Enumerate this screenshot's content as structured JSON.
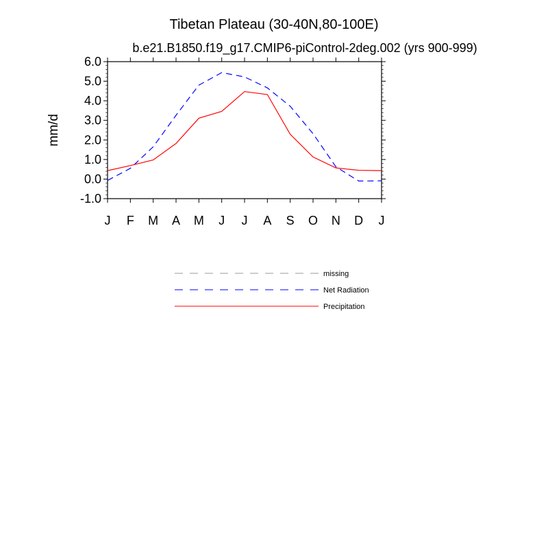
{
  "chart_data": {
    "type": "line",
    "title": "Tibetan Plateau (30-40N,80-100E)",
    "subtitle": "b.e21.B1850.f19_g17.CMIP6-piControl-2deg.002 (yrs 900-999)",
    "xlabel": "",
    "ylabel": "mm/d",
    "categories": [
      "J",
      "F",
      "M",
      "A",
      "M",
      "J",
      "J",
      "A",
      "S",
      "O",
      "N",
      "D",
      "J"
    ],
    "ylim": [
      -1.0,
      6.0
    ],
    "yticks": [
      "-1.0",
      "0.0",
      "1.0",
      "2.0",
      "3.0",
      "4.0",
      "5.0",
      "6.0"
    ],
    "grid": false,
    "legend_position": "bottom",
    "legend": [
      {
        "name": "missing",
        "color": "#999999",
        "dash": "dashed"
      },
      {
        "name": "Net Radiation",
        "color": "#0000ff",
        "dash": "dashed"
      },
      {
        "name": "Precipitation",
        "color": "#ff0000",
        "dash": "solid"
      }
    ],
    "series": [
      {
        "name": "Net Radiation",
        "color": "#0000ff",
        "dash": "dashed",
        "values": [
          -0.07,
          0.55,
          1.65,
          3.26,
          4.8,
          5.44,
          5.22,
          4.66,
          3.72,
          2.32,
          0.63,
          -0.1,
          -0.09
        ]
      },
      {
        "name": "Precipitation",
        "color": "#ff0000",
        "dash": "solid",
        "values": [
          0.43,
          0.69,
          0.98,
          1.82,
          3.11,
          3.46,
          4.47,
          4.32,
          2.29,
          1.13,
          0.57,
          0.45,
          0.43
        ]
      }
    ]
  }
}
